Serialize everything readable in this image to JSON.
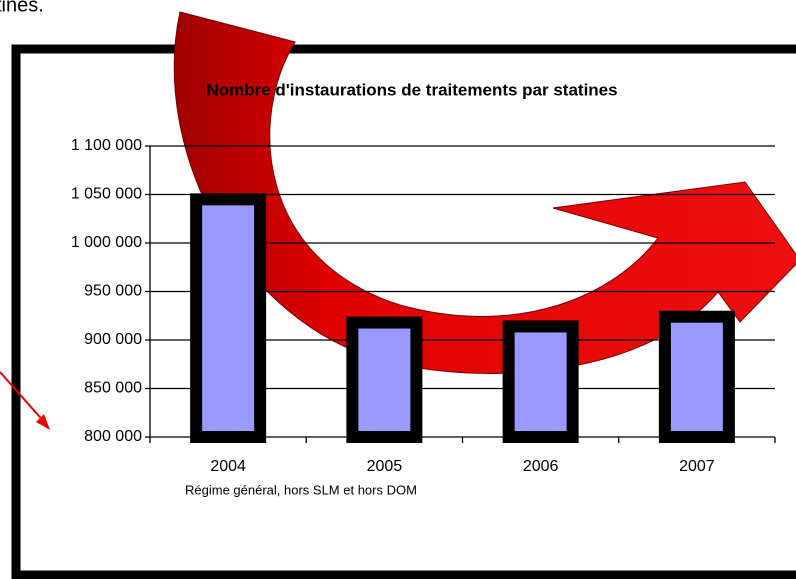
{
  "caption_fragment": "tines.",
  "chart_data": {
    "type": "bar",
    "title": "Nombre d'instaurations de traitements  par statines",
    "subtitle": "Régime général,   hors SLM  et hors DOM",
    "categories": [
      "2004",
      "2005",
      "2006",
      "2007"
    ],
    "values": [
      1045000,
      918000,
      914000,
      924000
    ],
    "color": "#9999ff",
    "ylim": [
      800000,
      1100000
    ],
    "yticks": [
      {
        "value": 800000,
        "label": "800 000"
      },
      {
        "value": 850000,
        "label": "850 000"
      },
      {
        "value": 900000,
        "label": "900 000"
      },
      {
        "value": 950000,
        "label": "950 000"
      },
      {
        "value": 1000000,
        "label": "1 000 000"
      },
      {
        "value": 1050000,
        "label": "1 050 000"
      },
      {
        "value": 1100000,
        "label": "1 100 000"
      }
    ],
    "grid": true
  }
}
